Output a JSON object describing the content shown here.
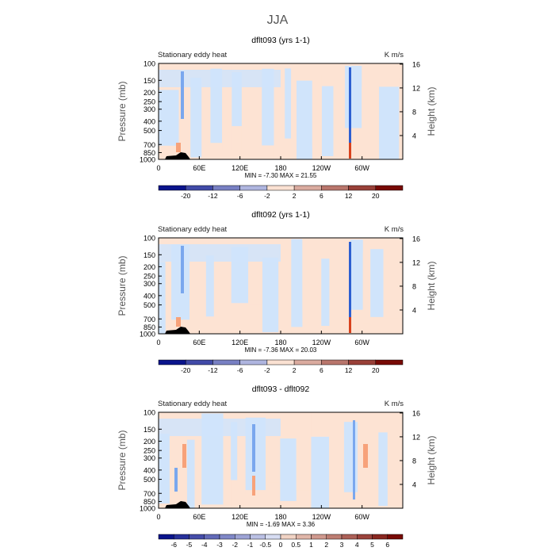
{
  "page_title": "JJA",
  "colors": {
    "blue_light": "#d0e4fb",
    "orange_light": "#fde3d3",
    "blue_mid": "#7aa7ee",
    "orange_mid": "#f7a27a",
    "blue_dark": "#2d5fd1",
    "red_dark": "#d8421d",
    "terrain": "#000000"
  },
  "chart_data": [
    {
      "type": "heatmap",
      "title": "dflt093 (yrs 1-1)",
      "subtitle_left": "Stationary eddy heat",
      "subtitle_right": "K m/s",
      "ylabel": "Pressure (mb)",
      "ylabel_right": "Height (km)",
      "xticks": [
        "0",
        "60E",
        "120E",
        "180",
        "120W",
        "60W"
      ],
      "yticks": [
        "100",
        "150",
        "200",
        "250",
        "300",
        "400",
        "500",
        "700",
        "850",
        "1000"
      ],
      "yticks_right": [
        "16",
        "12",
        "8",
        "4"
      ],
      "stats": "MIN =   -7.30   MAX =   21.55",
      "min": -7.3,
      "max": 21.55,
      "colorbar": [
        "-20",
        "-12",
        "-6",
        "-2",
        "2",
        "6",
        "12",
        "20"
      ]
    },
    {
      "type": "heatmap",
      "title": "dflt092 (yrs 1-1)",
      "subtitle_left": "Stationary eddy heat",
      "subtitle_right": "K m/s",
      "ylabel": "Pressure (mb)",
      "ylabel_right": "Height (km)",
      "xticks": [
        "0",
        "60E",
        "120E",
        "180",
        "120W",
        "60W"
      ],
      "yticks": [
        "100",
        "150",
        "200",
        "250",
        "300",
        "400",
        "500",
        "700",
        "850",
        "1000"
      ],
      "yticks_right": [
        "16",
        "12",
        "8",
        "4"
      ],
      "stats": "MIN =   -7.36   MAX =   20.03",
      "min": -7.36,
      "max": 20.03,
      "colorbar": [
        "-20",
        "-12",
        "-6",
        "-2",
        "2",
        "6",
        "12",
        "20"
      ]
    },
    {
      "type": "heatmap",
      "title": "dflt093 - dflt092",
      "subtitle_left": "Stationary eddy heat",
      "subtitle_right": "K m/s",
      "ylabel": "Pressure (mb)",
      "ylabel_right": "Height (km)",
      "xticks": [
        "0",
        "60E",
        "120E",
        "180",
        "120W",
        "60W"
      ],
      "yticks": [
        "100",
        "150",
        "200",
        "250",
        "300",
        "400",
        "500",
        "700",
        "850",
        "1000"
      ],
      "yticks_right": [
        "16",
        "12",
        "8",
        "4"
      ],
      "stats": "MIN =   -1.69   MAX =    3.36",
      "min": -1.69,
      "max": 3.36,
      "colorbar": [
        "-6",
        "-5",
        "-4",
        "-3",
        "-2",
        "-1",
        "-0.5",
        "0",
        "0.5",
        "1",
        "2",
        "3",
        "4",
        "5",
        "6"
      ]
    }
  ]
}
